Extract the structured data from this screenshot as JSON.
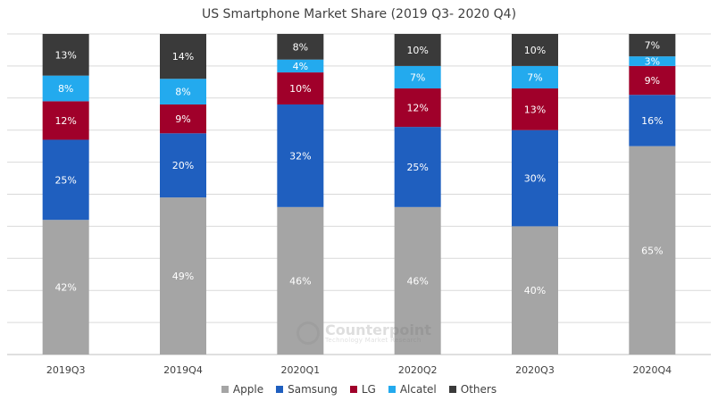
{
  "chart_data": {
    "type": "bar",
    "stacked": true,
    "title": "US Smartphone Market Share (2019 Q3- 2020 Q4)",
    "categories": [
      "2019Q3",
      "2019Q4",
      "2020Q1",
      "2020Q2",
      "2020Q3",
      "2020Q4"
    ],
    "series": [
      {
        "name": "Apple",
        "color": "#a5a5a5",
        "values": [
          42,
          49,
          46,
          46,
          40,
          65
        ],
        "labels": [
          "42%",
          "49%",
          "46%",
          "46%",
          "40%",
          "65%"
        ]
      },
      {
        "name": "Samsung",
        "color": "#1f5fbf",
        "values": [
          25,
          20,
          32,
          25,
          30,
          16
        ],
        "labels": [
          "25%",
          "20%",
          "32%",
          "25%",
          "30%",
          "16%"
        ]
      },
      {
        "name": "LG",
        "color": "#a0002a",
        "values": [
          12,
          9,
          10,
          12,
          13,
          9
        ],
        "labels": [
          "12%",
          "9%",
          "10%",
          "12%",
          "13%",
          "9%"
        ]
      },
      {
        "name": "Alcatel",
        "color": "#23aaee",
        "values": [
          8,
          8,
          4,
          7,
          7,
          3
        ],
        "labels": [
          "8%",
          "8%",
          "4%",
          "7%",
          "7%",
          "3%"
        ]
      },
      {
        "name": "Others",
        "color": "#3a3a3a",
        "values": [
          13,
          14,
          8,
          10,
          10,
          7
        ],
        "labels": [
          "13%",
          "14%",
          "8%",
          "10%",
          "10%",
          "7%"
        ]
      }
    ],
    "ylim": [
      0,
      100
    ],
    "grid": true,
    "legend_position": "bottom"
  },
  "watermark": {
    "name": "Counterpoint",
    "tagline": "Technology Market Research"
  }
}
